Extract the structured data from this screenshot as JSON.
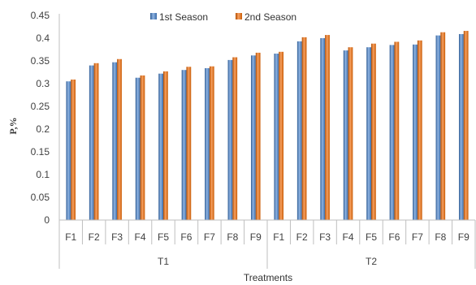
{
  "chart_data": {
    "type": "bar",
    "title": "",
    "xlabel": "Treatments",
    "ylabel": "P,%",
    "ylim": [
      0,
      0.45
    ],
    "yticks": [
      "0",
      "0.05",
      "0.1",
      "0.15",
      "0.2",
      "0.25",
      "0.3",
      "0.35",
      "0.4",
      "0.45"
    ],
    "grid": false,
    "legend_position": "top",
    "groups": [
      {
        "label": "T1",
        "categories": [
          "F1",
          "F2",
          "F3",
          "F4",
          "F5",
          "F6",
          "F7",
          "F8",
          "F9"
        ]
      },
      {
        "label": "T2",
        "categories": [
          "F1",
          "F2",
          "F3",
          "F4",
          "F5",
          "F6",
          "F7",
          "F8",
          "F9"
        ]
      }
    ],
    "series": [
      {
        "name": "1st Season",
        "color": "#4A7EBB",
        "values": [
          0.305,
          0.34,
          0.347,
          0.313,
          0.322,
          0.33,
          0.334,
          0.352,
          0.362,
          0.366,
          0.393,
          0.4,
          0.373,
          0.38,
          0.385,
          0.386,
          0.406,
          0.409
        ]
      },
      {
        "name": "2nd Season",
        "color": "#E46C0A",
        "values": [
          0.309,
          0.345,
          0.354,
          0.318,
          0.327,
          0.337,
          0.338,
          0.358,
          0.368,
          0.37,
          0.402,
          0.407,
          0.38,
          0.388,
          0.392,
          0.395,
          0.413,
          0.416
        ]
      }
    ]
  }
}
